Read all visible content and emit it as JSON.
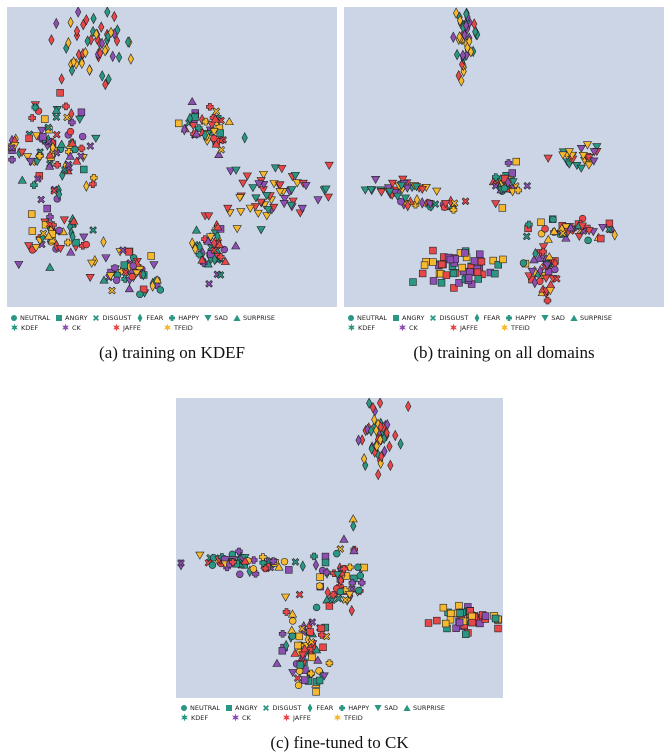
{
  "colors": {
    "kdef": "#2a9784",
    "ck": "#8e4fb4",
    "jaffe": "#e8474a",
    "tfeid": "#f5b82e",
    "bg": "#cbd5e5"
  },
  "legend": {
    "emotions": [
      {
        "label": "NEUTRAL",
        "icon": "circle-icon"
      },
      {
        "label": "ANGRY",
        "icon": "square-icon"
      },
      {
        "label": "DISGUST",
        "icon": "x-icon"
      },
      {
        "label": "FEAR",
        "icon": "diamond-icon"
      },
      {
        "label": "HAPPY",
        "icon": "plus-icon"
      },
      {
        "label": "SAD",
        "icon": "triangle-down-icon"
      },
      {
        "label": "SURPRISE",
        "icon": "triangle-up-icon"
      }
    ],
    "domains": [
      {
        "label": "KDEF",
        "icon": "star-icon",
        "color": "#2a9784"
      },
      {
        "label": "CK",
        "icon": "star-icon",
        "color": "#8e4fb4"
      },
      {
        "label": "JAFFE",
        "icon": "star-icon",
        "color": "#e8474a"
      },
      {
        "label": "TFEID",
        "icon": "star-icon",
        "color": "#f5b82e"
      }
    ]
  },
  "chart_data": [
    {
      "type": "scatter",
      "caption": "(a) training on KDEF",
      "clusters": [
        {
          "shape": "diamond",
          "cx": 0.26,
          "cy": 0.11,
          "sx": 0.06,
          "sy": 0.05,
          "n": 55
        },
        {
          "shape": "mixed",
          "cx": 0.14,
          "cy": 0.47,
          "sx": 0.06,
          "sy": 0.08,
          "n": 95
        },
        {
          "shape": "mixed",
          "cx": 0.14,
          "cy": 0.77,
          "sx": 0.06,
          "sy": 0.04,
          "n": 50
        },
        {
          "shape": "mixed",
          "cx": 0.6,
          "cy": 0.4,
          "sx": 0.04,
          "sy": 0.04,
          "n": 45
        },
        {
          "shape": "triangle",
          "cx": 0.81,
          "cy": 0.62,
          "sx": 0.08,
          "sy": 0.05,
          "n": 60
        },
        {
          "shape": "mixed",
          "cx": 0.62,
          "cy": 0.81,
          "sx": 0.04,
          "sy": 0.05,
          "n": 45
        },
        {
          "shape": "mixed",
          "cx": 0.37,
          "cy": 0.88,
          "sx": 0.05,
          "sy": 0.04,
          "n": 50
        }
      ]
    },
    {
      "type": "scatter",
      "caption": "(b) training on all domains",
      "clusters": [
        {
          "shape": "diamond",
          "cx": 0.38,
          "cy": 0.1,
          "sx": 0.015,
          "sy": 0.05,
          "n": 45
        },
        {
          "shape": "triangle",
          "cx": 0.16,
          "cy": 0.61,
          "sx": 0.06,
          "sy": 0.01,
          "n": 35
        },
        {
          "shape": "mixed",
          "cx": 0.26,
          "cy": 0.66,
          "sx": 0.04,
          "sy": 0.01,
          "n": 25
        },
        {
          "shape": "mixed",
          "cx": 0.51,
          "cy": 0.59,
          "sx": 0.025,
          "sy": 0.025,
          "n": 35
        },
        {
          "shape": "triangle",
          "cx": 0.74,
          "cy": 0.51,
          "sx": 0.03,
          "sy": 0.02,
          "n": 25
        },
        {
          "shape": "mixed",
          "cx": 0.72,
          "cy": 0.74,
          "sx": 0.06,
          "sy": 0.015,
          "n": 45
        },
        {
          "shape": "square",
          "cx": 0.36,
          "cy": 0.87,
          "sx": 0.06,
          "sy": 0.03,
          "n": 55
        },
        {
          "shape": "mixed",
          "cx": 0.62,
          "cy": 0.88,
          "sx": 0.025,
          "sy": 0.05,
          "n": 45
        }
      ]
    },
    {
      "type": "scatter",
      "caption": "(c) fine-tuned to CK",
      "clusters": [
        {
          "shape": "diamond",
          "cx": 0.62,
          "cy": 0.12,
          "sx": 0.025,
          "sy": 0.05,
          "n": 50
        },
        {
          "shape": "mixed",
          "cx": 0.2,
          "cy": 0.55,
          "sx": 0.09,
          "sy": 0.015,
          "n": 60
        },
        {
          "shape": "mixed",
          "cx": 0.51,
          "cy": 0.59,
          "sx": 0.04,
          "sy": 0.06,
          "n": 55
        },
        {
          "shape": "mixed",
          "cx": 0.39,
          "cy": 0.83,
          "sx": 0.04,
          "sy": 0.06,
          "n": 70
        },
        {
          "shape": "square",
          "cx": 0.89,
          "cy": 0.74,
          "sx": 0.05,
          "sy": 0.02,
          "n": 55
        }
      ]
    }
  ]
}
